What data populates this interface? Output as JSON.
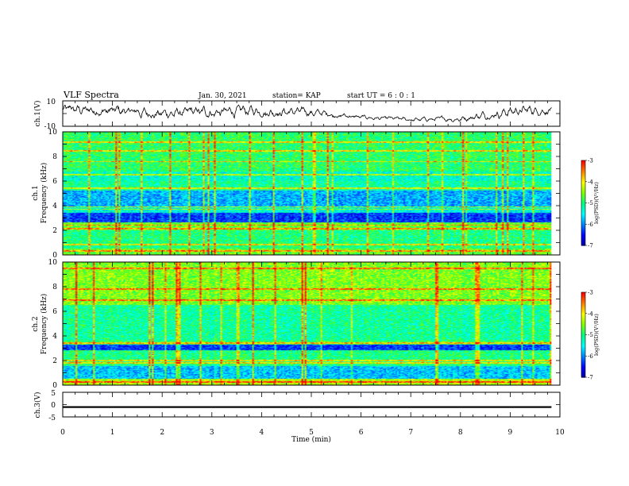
{
  "header": {
    "title": "VLF Spectra",
    "date": "Jan. 30, 2021",
    "station": "station= KAP",
    "start": "start  UT =  6 : 0  : 1"
  },
  "colors": {
    "background": "#ffffff",
    "axis": "#000000",
    "colormap": [
      "#0000a0",
      "#0000ff",
      "#0080ff",
      "#00ffff",
      "#00ff80",
      "#80ff00",
      "#ffff00",
      "#ff8000",
      "#ff0000",
      "#ffffff"
    ]
  },
  "chart_data": [
    {
      "type": "line",
      "ylabel": "ch.1(V)",
      "ylim": [
        -10,
        10
      ],
      "yticks": [
        "10",
        "-10"
      ],
      "xlim": [
        0,
        10
      ],
      "x_data_end_min": 9.83,
      "series": [
        {
          "values_description": null
        }
      ],
      "envelope": {
        "x_min": [
          0,
          1,
          2,
          3,
          4,
          5,
          6,
          7,
          8,
          9,
          9.83
        ],
        "y_center": [
          3,
          2,
          0,
          1,
          2,
          1,
          -3,
          -5,
          -4,
          2,
          3
        ],
        "y_amplitude": [
          4,
          4,
          4,
          4,
          4,
          3,
          1.5,
          1.5,
          2,
          4,
          3
        ]
      }
    },
    {
      "type": "heatmap",
      "ylabel": "ch.1\nFrequency (kHz)",
      "ylim": [
        0,
        10
      ],
      "yticks": [
        "0",
        "2",
        "4",
        "6",
        "8",
        "10"
      ],
      "xlim": [
        0,
        10
      ],
      "x_data_end_min": 9.83,
      "colorbar": {
        "range": [
          -7,
          -3
        ],
        "ticks": [
          "-3",
          "-4",
          "-5",
          "-6",
          "-7"
        ],
        "label": "log(PSD)(V²/Hz)"
      },
      "bands_khz": [
        {
          "from": 0.0,
          "to": 0.5,
          "level": -4.6
        },
        {
          "from": 0.5,
          "to": 2.0,
          "level": -5.0
        },
        {
          "from": 2.0,
          "to": 2.6,
          "level": -4.6
        },
        {
          "from": 2.6,
          "to": 3.4,
          "level": -6.3
        },
        {
          "from": 3.4,
          "to": 3.9,
          "level": -5.4
        },
        {
          "from": 3.9,
          "to": 5.2,
          "level": -5.8
        },
        {
          "from": 5.2,
          "to": 6.0,
          "level": -5.1
        },
        {
          "from": 6.0,
          "to": 6.8,
          "level": -5.3
        },
        {
          "from": 6.8,
          "to": 10.0,
          "level": -4.9
        }
      ],
      "narrowband_lines_khz": [
        0.3,
        0.8,
        2.1,
        2.4,
        3.7,
        3.9,
        5.4,
        6.5,
        7.6,
        8.5,
        9.2
      ]
    },
    {
      "type": "heatmap",
      "ylabel": "ch.2\nFrequency (kHz)",
      "ylim": [
        0,
        10
      ],
      "yticks": [
        "0",
        "2",
        "4",
        "6",
        "8",
        "10"
      ],
      "xlim": [
        0,
        10
      ],
      "x_data_end_min": 9.83,
      "colorbar": {
        "range": [
          -7,
          -3
        ],
        "ticks": [
          "-3",
          "-4",
          "-5",
          "-6",
          "-7"
        ],
        "label": "log(PSD)(V²/Hz)"
      },
      "bands_khz": [
        {
          "from": 0.0,
          "to": 0.5,
          "level": -4.3
        },
        {
          "from": 0.5,
          "to": 1.5,
          "level": -5.7
        },
        {
          "from": 1.5,
          "to": 2.8,
          "level": -5.0
        },
        {
          "from": 2.8,
          "to": 3.3,
          "level": -6.3
        },
        {
          "from": 3.3,
          "to": 3.6,
          "level": -4.8
        },
        {
          "from": 3.6,
          "to": 6.5,
          "level": -5.1
        },
        {
          "from": 6.5,
          "to": 10.0,
          "level": -4.5
        }
      ],
      "narrowband_lines_khz": [
        0.2,
        1.8,
        2.0,
        3.4,
        6.9,
        7.8,
        9.5
      ]
    },
    {
      "type": "line",
      "ylabel": "ch.3(V)",
      "ylim": [
        -5,
        5
      ],
      "yticks": [
        "5",
        "0",
        "-5"
      ],
      "xlabel": "Time (min)",
      "xlim": [
        0,
        10
      ],
      "xticks": [
        "0",
        "1",
        "2",
        "3",
        "4",
        "5",
        "6",
        "7",
        "8",
        "9",
        "10"
      ],
      "x_data_end_min": 9.83,
      "series": [
        {
          "constant_value": -1,
          "band_halfwidth": 0.35
        }
      ]
    }
  ]
}
